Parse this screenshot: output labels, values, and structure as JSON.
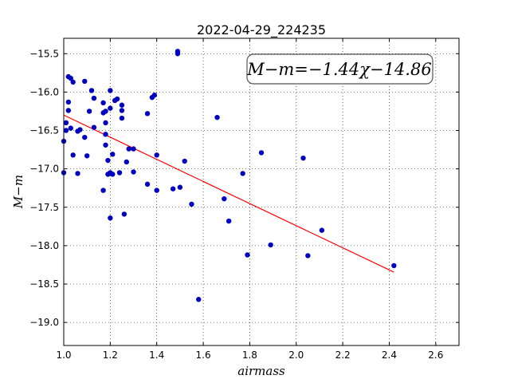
{
  "chart_data": {
    "type": "scatter",
    "title": "2022-04-29_224235",
    "xlabel": "airmass",
    "ylabel": "M−m",
    "xlim": [
      1.0,
      2.7
    ],
    "ylim": [
      -19.3,
      -15.3
    ],
    "y_inverted": true,
    "grid": true,
    "xticks": [
      "1.0",
      "1.2",
      "1.4",
      "1.6",
      "1.8",
      "2.0",
      "2.2",
      "2.4",
      "2.6"
    ],
    "yticks": [
      "−15.5",
      "−16.0",
      "−16.5",
      "−17.0",
      "−17.5",
      "−18.0",
      "−18.5",
      "−19.0"
    ],
    "annotation": "M−m=−1.44χ−14.86",
    "fit": {
      "slope": -1.44,
      "intercept": -14.86,
      "x_range": [
        1.0,
        2.42
      ],
      "color": "#ff0000"
    },
    "point_color": "#0000c0",
    "points": [
      [
        1.0,
        -16.64
      ],
      [
        1.0,
        -17.05
      ],
      [
        1.01,
        -16.4
      ],
      [
        1.01,
        -16.5
      ],
      [
        1.02,
        -16.24
      ],
      [
        1.02,
        -16.13
      ],
      [
        1.02,
        -15.8
      ],
      [
        1.03,
        -16.47
      ],
      [
        1.03,
        -15.82
      ],
      [
        1.04,
        -15.87
      ],
      [
        1.04,
        -16.82
      ],
      [
        1.06,
        -16.51
      ],
      [
        1.06,
        -17.06
      ],
      [
        1.07,
        -16.49
      ],
      [
        1.09,
        -15.86
      ],
      [
        1.09,
        -16.59
      ],
      [
        1.1,
        -16.83
      ],
      [
        1.11,
        -16.25
      ],
      [
        1.12,
        -15.98
      ],
      [
        1.13,
        -16.08
      ],
      [
        1.13,
        -16.46
      ],
      [
        1.17,
        -16.14
      ],
      [
        1.17,
        -16.27
      ],
      [
        1.17,
        -17.28
      ],
      [
        1.18,
        -16.25
      ],
      [
        1.18,
        -16.4
      ],
      [
        1.18,
        -16.55
      ],
      [
        1.18,
        -16.69
      ],
      [
        1.19,
        -16.89
      ],
      [
        1.19,
        -17.07
      ],
      [
        1.2,
        -15.98
      ],
      [
        1.2,
        -16.21
      ],
      [
        1.2,
        -17.05
      ],
      [
        1.2,
        -17.64
      ],
      [
        1.21,
        -16.81
      ],
      [
        1.21,
        -17.07
      ],
      [
        1.22,
        -16.11
      ],
      [
        1.23,
        -16.09
      ],
      [
        1.24,
        -17.05
      ],
      [
        1.25,
        -16.17
      ],
      [
        1.25,
        -16.24
      ],
      [
        1.25,
        -16.34
      ],
      [
        1.26,
        -17.59
      ],
      [
        1.27,
        -16.91
      ],
      [
        1.28,
        -16.74
      ],
      [
        1.3,
        -16.74
      ],
      [
        1.3,
        -17.04
      ],
      [
        1.36,
        -16.28
      ],
      [
        1.36,
        -17.2
      ],
      [
        1.38,
        -16.07
      ],
      [
        1.39,
        -16.04
      ],
      [
        1.4,
        -16.82
      ],
      [
        1.4,
        -17.28
      ],
      [
        1.47,
        -17.26
      ],
      [
        1.49,
        -15.47
      ],
      [
        1.49,
        -15.5
      ],
      [
        1.5,
        -17.24
      ],
      [
        1.52,
        -16.9
      ],
      [
        1.55,
        -17.46
      ],
      [
        1.58,
        -18.7
      ],
      [
        1.66,
        -16.33
      ],
      [
        1.69,
        -17.39
      ],
      [
        1.71,
        -17.68
      ],
      [
        1.77,
        -17.06
      ],
      [
        1.79,
        -18.12
      ],
      [
        1.85,
        -16.79
      ],
      [
        1.89,
        -17.99
      ],
      [
        2.03,
        -16.86
      ],
      [
        2.05,
        -18.13
      ],
      [
        2.11,
        -17.8
      ],
      [
        2.42,
        -18.26
      ]
    ]
  }
}
